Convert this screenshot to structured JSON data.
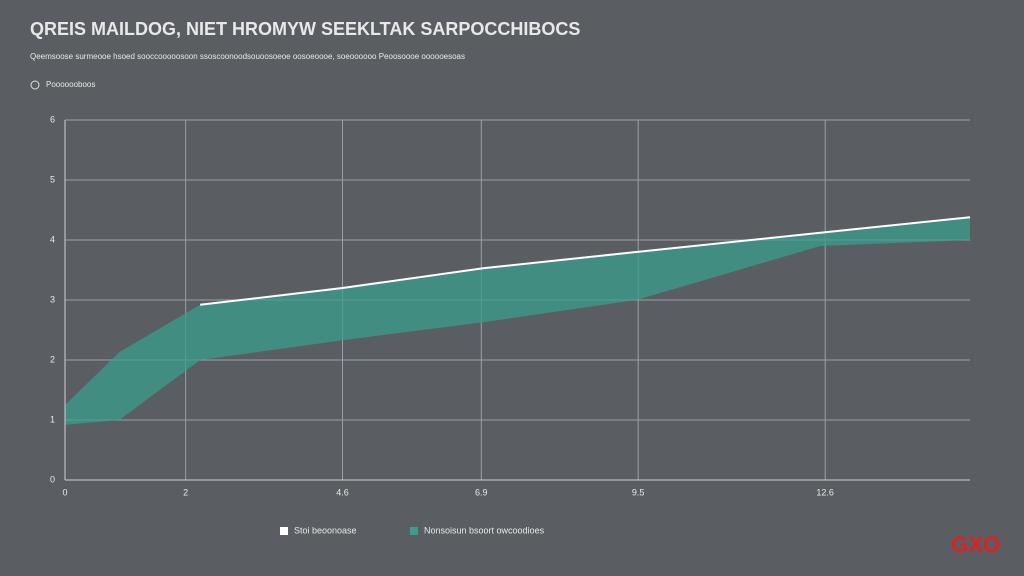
{
  "chart_data": {
    "type": "band-line",
    "title": "QREIS MAILDOG, NIET HROMYW SEEKLTAK SARPOCCHIBOCS",
    "subtitle": "Qeemsoose surmeooe hsoed sooccooooosoon ssoscoonoodsouoosoeoe oosoeoooe, soeoooooo Peoosoooe oooooesoas",
    "note": "Pooooooboos",
    "watermark": "GXO",
    "x": [
      0,
      0.9,
      2.24,
      4.6,
      6.93,
      9.47,
      12.52,
      15
    ],
    "xlim": [
      0,
      15
    ],
    "xticks": [
      0,
      2,
      4.6,
      6.9,
      9.5,
      12.6
    ],
    "ylim": [
      0,
      6
    ],
    "yticks": [
      0,
      1,
      2,
      3,
      4,
      5,
      6
    ],
    "grid": true,
    "series": [
      {
        "name": "Stoi beoonoase",
        "color": "#ffffff",
        "values": [
          null,
          null,
          2.92,
          3.2,
          3.53,
          3.8,
          4.12,
          4.38
        ]
      },
      {
        "name": "Nonsoisun bsoort owcoodioes",
        "color": "#3a9e8c",
        "values": [
          0.92,
          1.0,
          2.0,
          2.33,
          2.63,
          3.0,
          3.9,
          4.0
        ]
      }
    ]
  }
}
